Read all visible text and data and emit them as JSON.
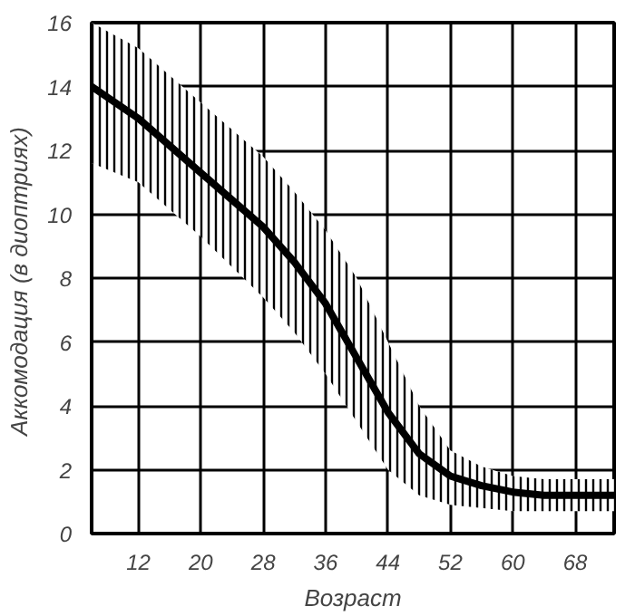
{
  "chart_data": {
    "type": "line",
    "xlabel": "Возраст",
    "ylabel": "Аккомодация  (в диоптриях)",
    "x": [
      6,
      12,
      20,
      28,
      32,
      36,
      40,
      44,
      48,
      52,
      56,
      60,
      64,
      68,
      73
    ],
    "series": [
      {
        "color": "#000000",
        "values": [
          14,
          13,
          11.3,
          9.6,
          8.5,
          7.2,
          5.5,
          3.8,
          2.5,
          1.8,
          1.5,
          1.3,
          1.2,
          1.2,
          1.2
        ],
        "lower": [
          11.6,
          11,
          9.3,
          7.4,
          6.3,
          5,
          3.5,
          2,
          1.2,
          0.9,
          0.8,
          0.7,
          0.7,
          0.7,
          0.7
        ],
        "upper": [
          16,
          15.2,
          13.5,
          11.8,
          10.7,
          9.5,
          8,
          6,
          4,
          2.6,
          2.1,
          1.8,
          1.7,
          1.7,
          1.7
        ]
      }
    ],
    "xlim": [
      6,
      73
    ],
    "ylim": [
      0,
      16
    ],
    "xticks": [
      12,
      20,
      28,
      36,
      44,
      52,
      60,
      68
    ],
    "yticks": [
      0,
      2,
      4,
      6,
      8,
      10,
      12,
      14,
      16
    ],
    "grid": true,
    "marker": "none",
    "line_style": "solid"
  }
}
